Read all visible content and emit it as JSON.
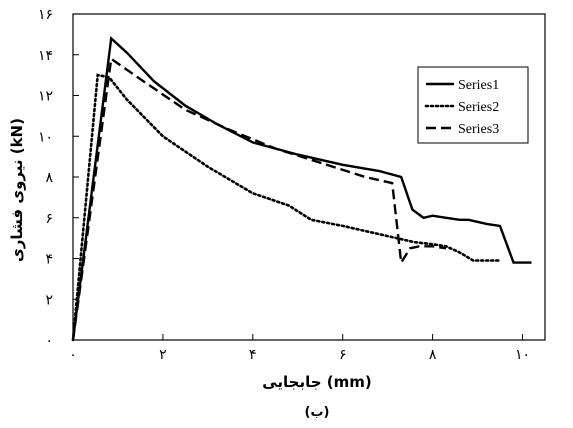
{
  "chart_data": {
    "type": "line",
    "xlabel": "جابجایی (mm)",
    "ylabel": "نیروی فشاری (kN)",
    "caption": "(ب)",
    "xlim": [
      0,
      10.5
    ],
    "ylim": [
      0,
      16
    ],
    "xticks": [
      0,
      2,
      4,
      6,
      8,
      10
    ],
    "yticks": [
      0,
      2,
      4,
      6,
      8,
      10,
      12,
      14,
      16
    ],
    "xtick_labels": [
      "۰",
      "۲",
      "۴",
      "۶",
      "۸",
      "۱۰"
    ],
    "ytick_labels": [
      "۰",
      "۲",
      "۴",
      "۶",
      "۸",
      "۱۰",
      "۱۲",
      "۱۴",
      "۱۶"
    ],
    "grid": false,
    "legend_position": "right",
    "series": [
      {
        "name": "Series1",
        "style": "solid",
        "x": [
          0,
          0.85,
          1.2,
          1.8,
          2.5,
          3.2,
          4.0,
          5.0,
          6.0,
          6.8,
          7.3,
          7.55,
          7.8,
          8.0,
          8.3,
          8.6,
          8.8,
          9.2,
          9.5,
          9.8,
          10.2
        ],
        "y": [
          0,
          14.8,
          14.1,
          12.7,
          11.5,
          10.6,
          9.7,
          9.1,
          8.6,
          8.3,
          8.0,
          6.4,
          6.0,
          6.1,
          6.0,
          5.9,
          5.9,
          5.7,
          5.6,
          3.8,
          3.8
        ]
      },
      {
        "name": "Series2",
        "style": "dotted",
        "x": [
          0,
          0.55,
          0.8,
          1.2,
          2.0,
          3.0,
          4.0,
          4.8,
          5.3,
          6.0,
          7.0,
          7.6,
          8.0,
          8.3,
          8.6,
          8.9,
          9.5
        ],
        "y": [
          0,
          13.0,
          12.9,
          11.8,
          10.0,
          8.5,
          7.2,
          6.6,
          5.9,
          5.6,
          5.1,
          4.8,
          4.7,
          4.6,
          4.3,
          3.9,
          3.9
        ]
      },
      {
        "name": "Series3",
        "style": "dashed",
        "x": [
          0,
          0.85,
          1.5,
          2.5,
          3.5,
          4.5,
          5.5,
          6.5,
          7.1,
          7.3,
          7.5,
          7.7,
          8.0,
          8.3
        ],
        "y": [
          0,
          13.8,
          12.8,
          11.3,
          10.3,
          9.4,
          8.7,
          8.0,
          7.7,
          3.8,
          4.5,
          4.6,
          4.6,
          4.5
        ]
      }
    ]
  }
}
